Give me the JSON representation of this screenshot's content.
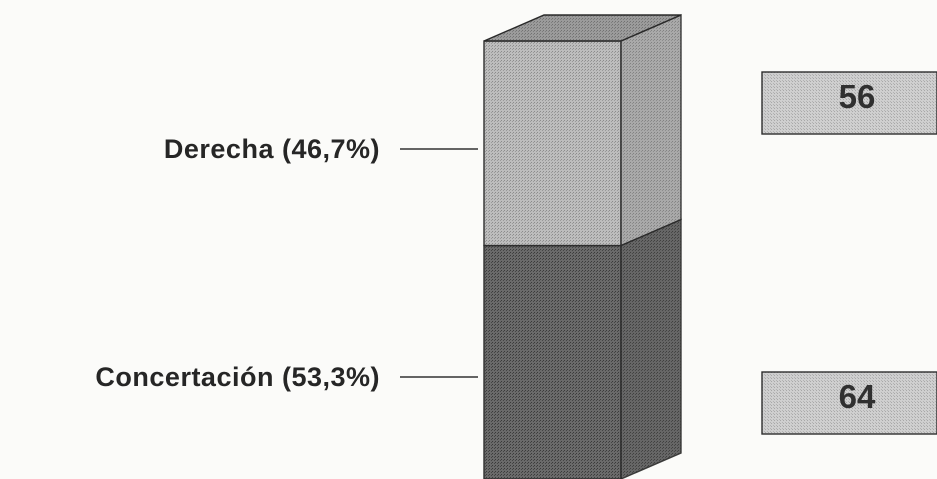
{
  "chart_data": {
    "type": "bar",
    "stacked": true,
    "three_d": true,
    "categories": [
      ""
    ],
    "series": [
      {
        "name": "Concertación (53,3%)",
        "label": "Concertación (53,3%)",
        "percent": 53.3,
        "count_label": "64",
        "value": 64,
        "color": "#5a5a5a"
      },
      {
        "name": "Derecha (46,7%)",
        "label": "Derecha (46,7%)",
        "percent": 46.7,
        "count_label": "56",
        "value": 56,
        "color": "#a6a6a6"
      }
    ],
    "legend": "none",
    "grid": false
  }
}
